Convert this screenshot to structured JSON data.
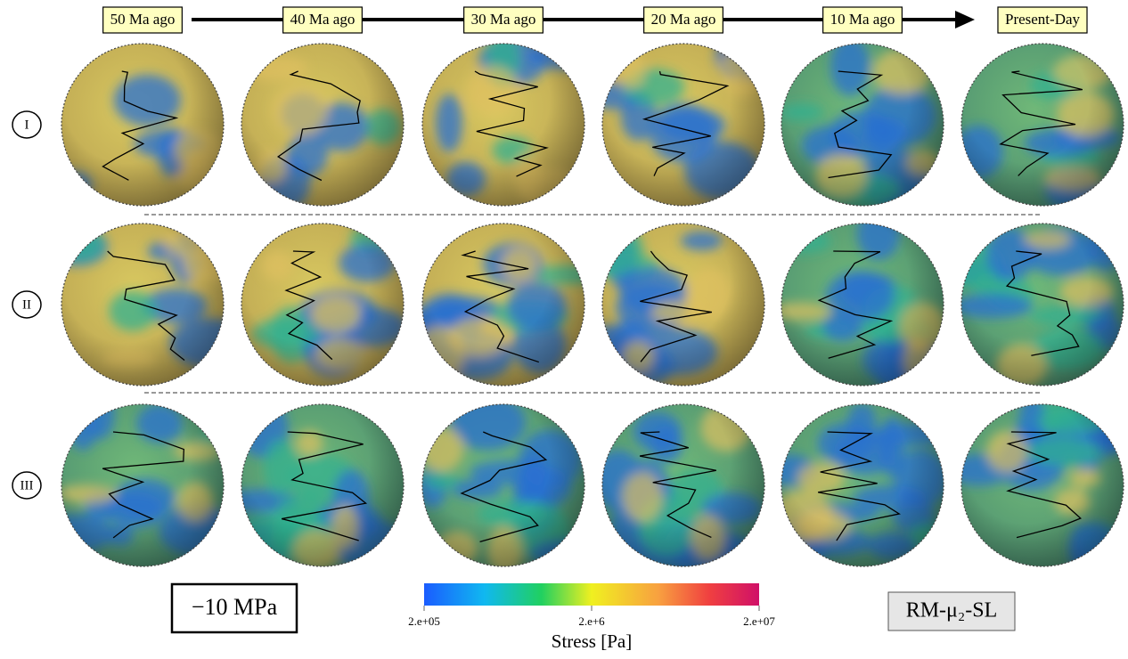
{
  "timeline": {
    "labels": [
      "50 Ma ago",
      "40 Ma ago",
      "30 Ma ago",
      "20 Ma ago",
      "10 Ma ago",
      "Present-Day"
    ]
  },
  "rows": {
    "labels": [
      "I",
      "II",
      "III"
    ]
  },
  "colorbar": {
    "label": "Stress [Pa]",
    "scale": "log",
    "range": [
      200000,
      20000000
    ],
    "ticks": [
      {
        "value": 200000,
        "label": "2.e+05"
      },
      {
        "value": 2000000,
        "label": "2.e+6"
      },
      {
        "value": 20000000,
        "label": "2.e+07"
      }
    ]
  },
  "annotations": {
    "stress_level": "−10 MPa",
    "model": "RM-μ₂-SL"
  }
}
